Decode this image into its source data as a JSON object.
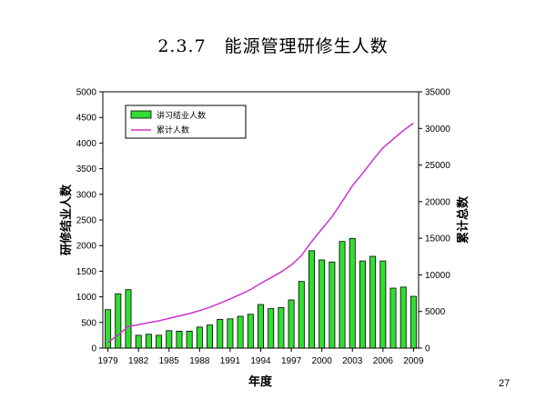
{
  "slide": {
    "title": "2.3.7　能源管理研修生人数",
    "page_number": "27"
  },
  "chart_data": {
    "type": "bar",
    "title": "",
    "xlabel": "年度",
    "ylabel": "研修结业人数",
    "y2label": "累计总数",
    "ylim": [
      0,
      5000
    ],
    "y2lim": [
      0,
      35000
    ],
    "yticks": [
      "0",
      "500",
      "1000",
      "1500",
      "2000",
      "2500",
      "3000",
      "3500",
      "4000",
      "4500",
      "5000"
    ],
    "y2ticks": [
      "0",
      "5000",
      "10000",
      "15000",
      "20000",
      "25000",
      "30000",
      "35000"
    ],
    "xticks": [
      "1979",
      "1982",
      "1985",
      "1988",
      "1991",
      "1994",
      "1997",
      "2000",
      "2003",
      "2006",
      "2009"
    ],
    "legend_position": "top-left",
    "grid": false,
    "x": [
      1979,
      1980,
      1981,
      1982,
      1983,
      1984,
      1985,
      1986,
      1987,
      1988,
      1989,
      1990,
      1991,
      1992,
      1993,
      1994,
      1995,
      1996,
      1997,
      1998,
      1999,
      2000,
      2001,
      2002,
      2003,
      2004,
      2005,
      2006,
      2007,
      2008,
      2009
    ],
    "series": [
      {
        "name": "讲习结业人数",
        "type": "bar",
        "axis": "left",
        "color": "#33dd33",
        "values": [
          750,
          1060,
          1140,
          250,
          270,
          250,
          340,
          330,
          330,
          410,
          450,
          560,
          570,
          620,
          660,
          850,
          770,
          790,
          940,
          1300,
          1900,
          1720,
          1680,
          2080,
          2140,
          1700,
          1790,
          1700,
          1170,
          1190,
          1010
        ]
      },
      {
        "name": "累计人数",
        "type": "line",
        "axis": "right",
        "color": "#cc33cc",
        "values": [
          750,
          1810,
          2950,
          3200,
          3470,
          3720,
          4060,
          4390,
          4720,
          5130,
          5580,
          6140,
          6710,
          7330,
          7990,
          8840,
          9610,
          10400,
          11340,
          12640,
          14540,
          16260,
          17940,
          20020,
          22160,
          23860,
          25650,
          27350,
          28520,
          29710,
          30720
        ]
      }
    ]
  }
}
